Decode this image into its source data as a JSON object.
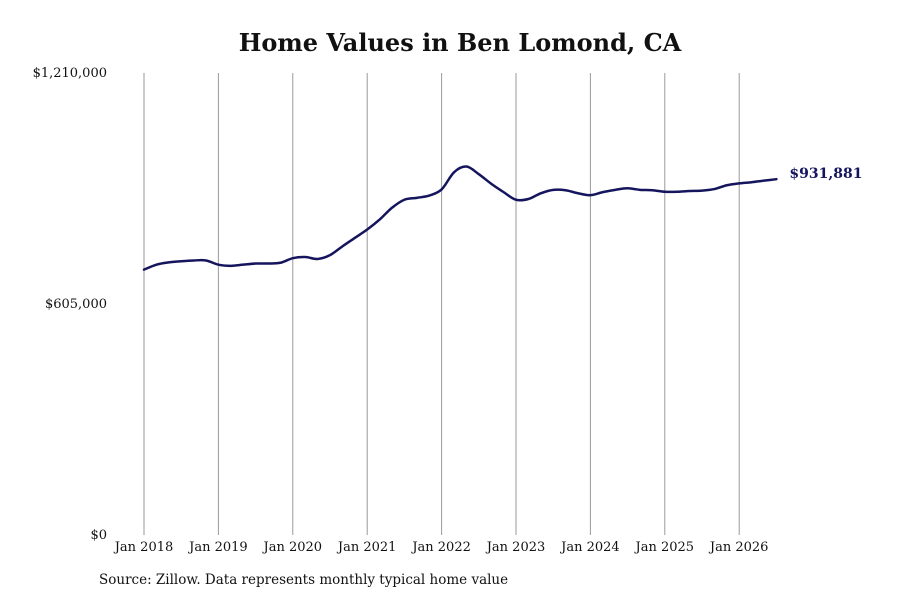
{
  "chart_data": {
    "type": "line",
    "title": "Home Values in Ben Lomond, CA",
    "source": "Source: Zillow. Data represents monthly typical home value",
    "xlabel": "",
    "ylabel": "",
    "ylim": [
      0,
      1210000
    ],
    "y_ticks": [
      {
        "value": 0,
        "label": "$0"
      },
      {
        "value": 605000,
        "label": "$605,000"
      },
      {
        "value": 1210000,
        "label": "$1,210,000"
      }
    ],
    "x_ticks": [
      {
        "date": "2018-01",
        "label": "Jan 2018"
      },
      {
        "date": "2019-01",
        "label": "Jan 2019"
      },
      {
        "date": "2020-01",
        "label": "Jan 2020"
      },
      {
        "date": "2021-01",
        "label": "Jan 2021"
      },
      {
        "date": "2022-01",
        "label": "Jan 2022"
      },
      {
        "date": "2023-01",
        "label": "Jan 2023"
      },
      {
        "date": "2024-01",
        "label": "Jan 2024"
      },
      {
        "date": "2025-01",
        "label": "Jan 2025"
      },
      {
        "date": "2026-01",
        "label": "Jan 2026"
      }
    ],
    "grid": "vertical",
    "line_color": "#15155e",
    "end_label": "$931,881",
    "series": [
      {
        "x": [
          "2018-01",
          "2018-03",
          "2018-05",
          "2018-07",
          "2018-09",
          "2018-11",
          "2019-01",
          "2019-03",
          "2019-05",
          "2019-07",
          "2019-09",
          "2019-11",
          "2020-01",
          "2020-03",
          "2020-05",
          "2020-07",
          "2020-09",
          "2020-11",
          "2021-01",
          "2021-03",
          "2021-05",
          "2021-07",
          "2021-09",
          "2021-11",
          "2022-01",
          "2022-03",
          "2022-05",
          "2022-07",
          "2022-09",
          "2022-11",
          "2023-01",
          "2023-03",
          "2023-05",
          "2023-07",
          "2023-09",
          "2023-11",
          "2024-01",
          "2024-03",
          "2024-05",
          "2024-07",
          "2024-09",
          "2024-11",
          "2025-01",
          "2025-03",
          "2025-05",
          "2025-07",
          "2025-09",
          "2025-11",
          "2026-01",
          "2026-03",
          "2026-05",
          "2026-07"
        ],
        "values": [
          695000,
          708000,
          714000,
          717000,
          719000,
          719000,
          708000,
          705000,
          708000,
          711000,
          711000,
          713000,
          725000,
          728000,
          723000,
          733000,
          756000,
          778000,
          800000,
          826000,
          857000,
          878000,
          883000,
          889000,
          905000,
          950000,
          965000,
          945000,
          920000,
          898000,
          878000,
          880000,
          895000,
          904000,
          903000,
          895000,
          890000,
          898000,
          904000,
          908000,
          904000,
          903000,
          899000,
          899000,
          901000,
          902000,
          906000,
          916000,
          921000,
          924000,
          928000,
          931881
        ]
      }
    ]
  }
}
